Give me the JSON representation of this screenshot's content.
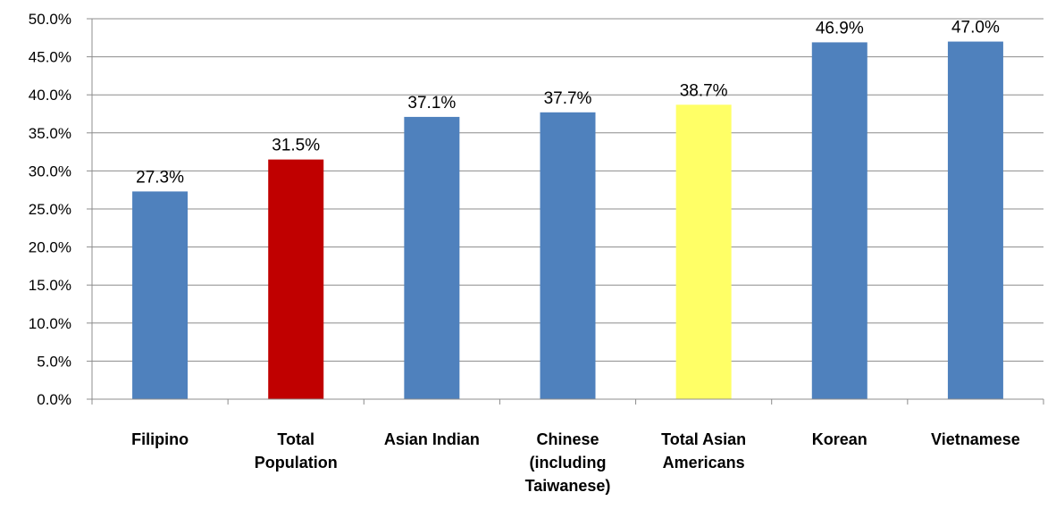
{
  "chart_data": {
    "type": "bar",
    "categories": [
      "Filipino",
      "Total Population",
      "Asian Indian",
      "Chinese (including Taiwanese)",
      "Total Asian Americans",
      "Korean",
      "Vietnamese"
    ],
    "category_lines": [
      [
        "Filipino"
      ],
      [
        "Total",
        "Population"
      ],
      [
        "Asian Indian"
      ],
      [
        "Chinese",
        "(including",
        "Taiwanese)"
      ],
      [
        "Total Asian",
        "Americans"
      ],
      [
        "Korean"
      ],
      [
        "Vietnamese"
      ]
    ],
    "values": [
      27.3,
      31.5,
      37.1,
      37.7,
      38.7,
      46.9,
      47.0
    ],
    "data_labels": [
      "27.3%",
      "31.5%",
      "37.1%",
      "37.7%",
      "38.7%",
      "46.9%",
      "47.0%"
    ],
    "bar_colors": [
      "#4f81bd",
      "#c00000",
      "#4f81bd",
      "#4f81bd",
      "#ffff66",
      "#4f81bd",
      "#4f81bd"
    ],
    "ylim": [
      0,
      50
    ],
    "yticks": [
      "0.0%",
      "5.0%",
      "10.0%",
      "15.0%",
      "20.0%",
      "25.0%",
      "30.0%",
      "35.0%",
      "40.0%",
      "45.0%",
      "50.0%"
    ],
    "grid": true,
    "title": "",
    "xlabel": "",
    "ylabel": ""
  }
}
